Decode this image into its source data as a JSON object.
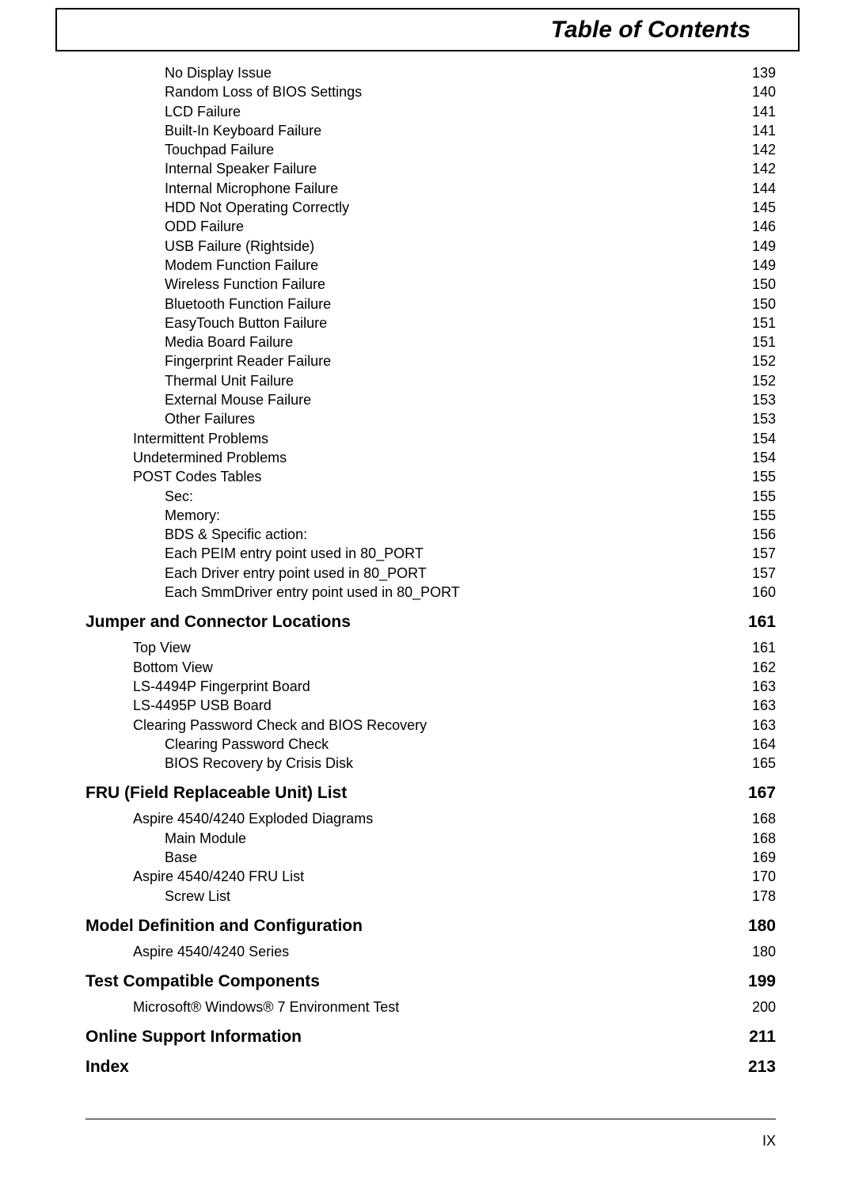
{
  "title": "Table of Contents",
  "page_number": "IX",
  "groups": [
    {
      "heading": null,
      "entries": [
        {
          "indent": 2,
          "label": "No Display Issue",
          "page": "139"
        },
        {
          "indent": 2,
          "label": "Random Loss of BIOS Settings ",
          "page": "140"
        },
        {
          "indent": 2,
          "label": "LCD Failure",
          "page": "141"
        },
        {
          "indent": 2,
          "label": "Built-In Keyboard Failure ",
          "page": "141"
        },
        {
          "indent": 2,
          "label": "Touchpad Failure ",
          "page": "142"
        },
        {
          "indent": 2,
          "label": "Internal Speaker Failure ",
          "page": "142"
        },
        {
          "indent": 2,
          "label": "Internal Microphone Failure ",
          "page": "144"
        },
        {
          "indent": 2,
          "label": "HDD Not Operating Correctly",
          "page": "145"
        },
        {
          "indent": 2,
          "label": "ODD Failure ",
          "page": "146"
        },
        {
          "indent": 2,
          "label": "USB Failure (Rightside) ",
          "page": "149"
        },
        {
          "indent": 2,
          "label": "Modem Function Failure ",
          "page": "149"
        },
        {
          "indent": 2,
          "label": "Wireless Function Failure ",
          "page": "150"
        },
        {
          "indent": 2,
          "label": "Bluetooth Function Failure ",
          "page": "150"
        },
        {
          "indent": 2,
          "label": "EasyTouch Button Failure",
          "page": "151"
        },
        {
          "indent": 2,
          "label": "Media Board Failure ",
          "page": "151"
        },
        {
          "indent": 2,
          "label": "Fingerprint Reader Failure ",
          "page": "152"
        },
        {
          "indent": 2,
          "label": "Thermal Unit Failure ",
          "page": "152"
        },
        {
          "indent": 2,
          "label": "External Mouse Failure",
          "page": "153"
        },
        {
          "indent": 2,
          "label": "Other Failures",
          "page": "153"
        },
        {
          "indent": 1,
          "label": "Intermittent Problems ",
          "page": "154"
        },
        {
          "indent": 1,
          "label": "Undetermined Problems",
          "page": "154"
        },
        {
          "indent": 1,
          "label": "POST Codes Tables",
          "page": "155"
        },
        {
          "indent": 2,
          "label": "Sec:",
          "page": "155"
        },
        {
          "indent": 2,
          "label": "Memory: ",
          "page": "155"
        },
        {
          "indent": 2,
          "label": "BDS & Specific action: ",
          "page": "156"
        },
        {
          "indent": 2,
          "label": "Each PEIM entry point used in 80_PORT",
          "page": "157"
        },
        {
          "indent": 2,
          "label": "Each Driver entry point used in 80_PORT ",
          "page": "157"
        },
        {
          "indent": 2,
          "label": "Each SmmDriver entry point used in 80_PORT",
          "page": "160"
        }
      ]
    },
    {
      "heading": {
        "label": "Jumper and Connector Locations",
        "page": "161"
      },
      "entries": [
        {
          "indent": 1,
          "label": "Top View",
          "page": "161"
        },
        {
          "indent": 1,
          "label": "Bottom View ",
          "page": "162"
        },
        {
          "indent": 1,
          "label": "LS-4494P Fingerprint Board",
          "page": "163"
        },
        {
          "indent": 1,
          "label": "LS-4495P USB Board",
          "page": "163"
        },
        {
          "indent": 1,
          "label": "Clearing Password Check and BIOS Recovery ",
          "page": "163"
        },
        {
          "indent": 2,
          "label": "Clearing Password Check",
          "page": "164"
        },
        {
          "indent": 2,
          "label": "BIOS Recovery by Crisis Disk ",
          "page": "165"
        }
      ]
    },
    {
      "heading": {
        "label": "FRU (Field Replaceable Unit) List",
        "page": "167"
      },
      "entries": [
        {
          "indent": 1,
          "label": "Aspire 4540/4240 Exploded Diagrams ",
          "page": "168"
        },
        {
          "indent": 2,
          "label": "Main Module ",
          "page": "168"
        },
        {
          "indent": 2,
          "label": "Base ",
          "page": "169"
        },
        {
          "indent": 1,
          "label": "Aspire 4540/4240 FRU List",
          "page": "170"
        },
        {
          "indent": 2,
          "label": "Screw List",
          "page": "178"
        }
      ]
    },
    {
      "heading": {
        "label": "Model Definition and Configuration",
        "page": "180"
      },
      "entries": [
        {
          "indent": 1,
          "label": "Aspire 4540/4240 Series ",
          "page": "180"
        }
      ]
    },
    {
      "heading": {
        "label": "Test Compatible Components",
        "page": "199"
      },
      "entries": [
        {
          "indent": 1,
          "label": "Microsoft® Windows® 7 Environment Test ",
          "page": "200"
        }
      ]
    },
    {
      "heading": {
        "label": "Online Support Information",
        "page": "211"
      },
      "entries": []
    },
    {
      "heading": {
        "label": "Index",
        "page": "213"
      },
      "entries": []
    }
  ]
}
